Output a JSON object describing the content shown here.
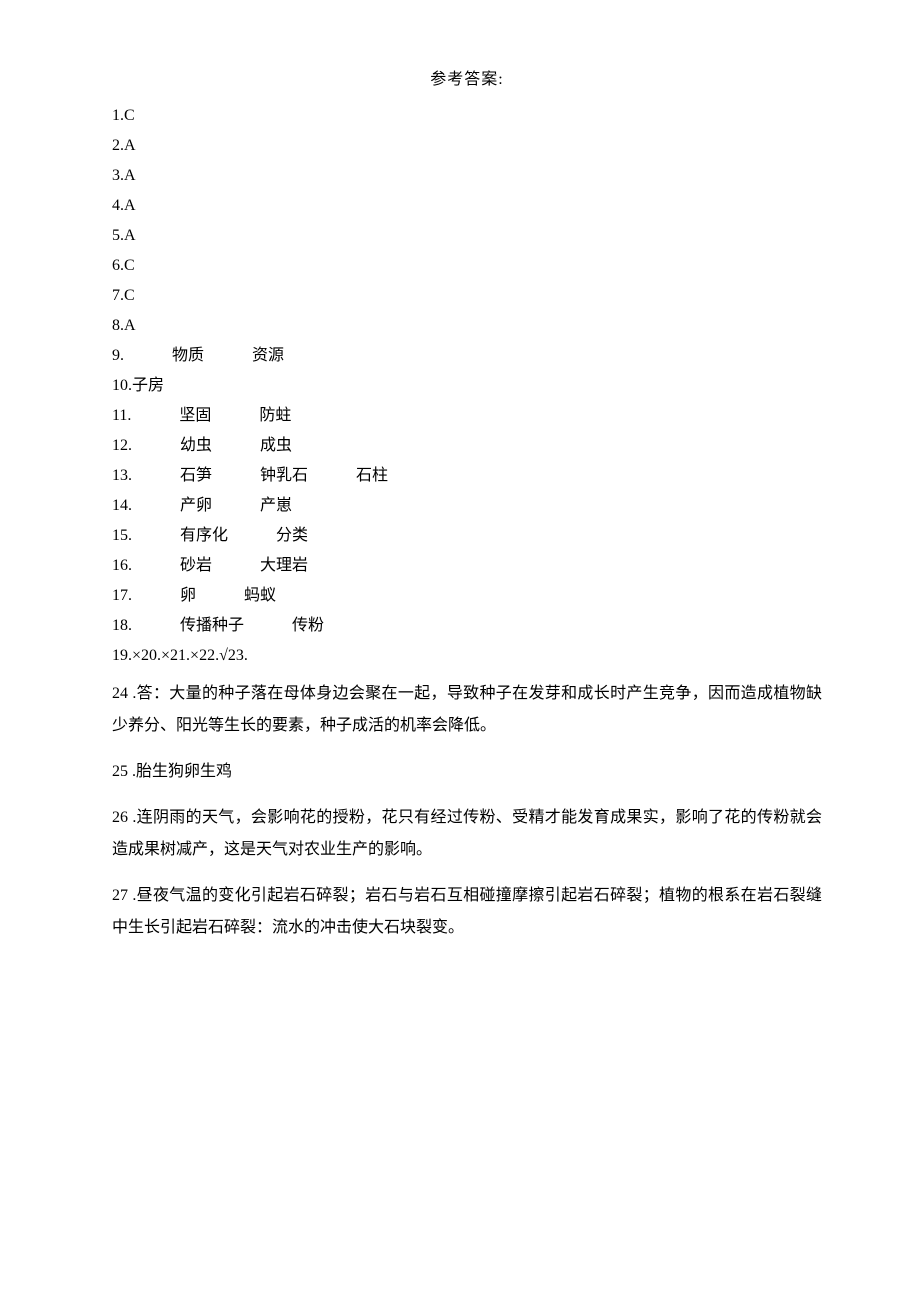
{
  "title": "参考答案:",
  "answers_single": [
    {
      "num": "1",
      "val": "C"
    },
    {
      "num": "2",
      "val": "A"
    },
    {
      "num": "3",
      "val": "A"
    },
    {
      "num": "4",
      "val": "A"
    },
    {
      "num": "5",
      "val": "A"
    },
    {
      "num": "6",
      "val": "C"
    },
    {
      "num": "7",
      "val": "C"
    },
    {
      "num": "8",
      "val": "A"
    }
  ],
  "a9": {
    "num": "9.",
    "parts": [
      "物质",
      "资源"
    ]
  },
  "a10": {
    "text": "10.子房"
  },
  "a11": {
    "num": "11.",
    "parts": [
      "坚固",
      "防蛀"
    ]
  },
  "a12": {
    "num": "12.",
    "parts": [
      "幼虫",
      "成虫"
    ]
  },
  "a13": {
    "num": "13.",
    "parts": [
      "石笋",
      "钟乳石",
      "石柱"
    ]
  },
  "a14": {
    "num": "14.",
    "parts": [
      "产卵",
      "产崽"
    ]
  },
  "a15": {
    "num": "15.",
    "parts": [
      "有序化",
      "分类"
    ]
  },
  "a16": {
    "num": "16.",
    "parts": [
      "砂岩",
      "大理岩"
    ]
  },
  "a17": {
    "num": "17.",
    "parts": [
      "卵",
      "蚂蚁"
    ]
  },
  "a18": {
    "num": "18.",
    "parts": [
      "传播种子",
      "传粉"
    ]
  },
  "a19_23": "19.×20.×21.×22.√23.",
  "a24": "24 .答：大量的种子落在母体身边会聚在一起，导致种子在发芽和成长时产生竞争，因而造成植物缺少养分、阳光等生长的要素，种子成活的机率会降低。",
  "a25": "25 .胎生狗卵生鸡",
  "a26": "26 .连阴雨的天气，会影响花的授粉，花只有经过传粉、受精才能发育成果实，影响了花的传粉就会造成果树减产，这是天气对农业生产的影响。",
  "a27": "27 .昼夜气温的变化引起岩石碎裂；岩石与岩石互相碰撞摩擦引起岩石碎裂；植物的根系在岩石裂缝中生长引起岩石碎裂：流水的冲击使大石块裂变。"
}
